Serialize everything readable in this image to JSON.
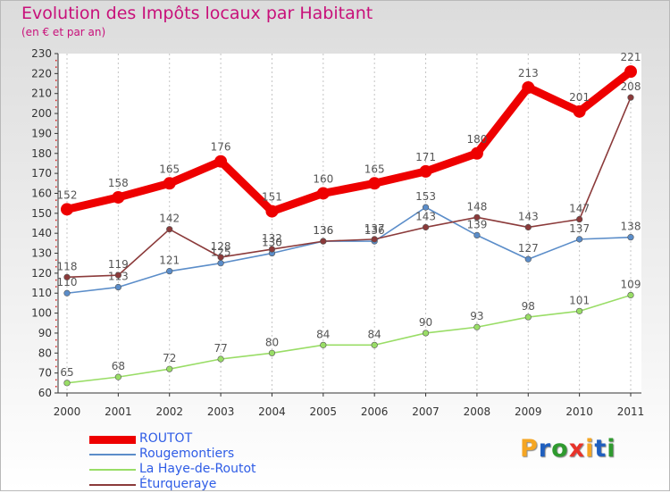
{
  "chart_data": {
    "type": "line",
    "title": "Evolution des Impôts locaux par Habitant",
    "subtitle": "(en € et par an)",
    "xlabel": "",
    "ylabel": "",
    "ylim": [
      60,
      230
    ],
    "ytick_step": 10,
    "x": [
      "2000",
      "2001",
      "2002",
      "2003",
      "2004",
      "2005",
      "2006",
      "2007",
      "2008",
      "2009",
      "2010",
      "2011"
    ],
    "grid": "vertical dotted",
    "legend_position": "bottom-left",
    "series": [
      {
        "name": "ROUTOT",
        "color": "#ee0000",
        "values": [
          152,
          158,
          165,
          176,
          151,
          160,
          165,
          171,
          180,
          213,
          201,
          221
        ]
      },
      {
        "name": "Rougemontiers",
        "color": "#5b8dc9",
        "values": [
          110,
          113,
          121,
          125,
          130,
          136,
          136,
          153,
          139,
          127,
          137,
          138
        ]
      },
      {
        "name": "La Haye-de-Routot",
        "color": "#99dd66",
        "values": [
          65,
          68,
          72,
          77,
          80,
          84,
          84,
          90,
          93,
          98,
          101,
          109
        ]
      },
      {
        "name": "Éturqueraye",
        "color": "#8b3a3a",
        "values": [
          118,
          119,
          142,
          128,
          132,
          136,
          137,
          143,
          148,
          143,
          147,
          208
        ]
      }
    ]
  },
  "logo": {
    "text": "Proxiti",
    "colors": [
      "#f5a623",
      "#1f5fbf",
      "#2f9a2f",
      "#e8332a",
      "#f5a623",
      "#1f5fbf",
      "#2f9a2f"
    ]
  }
}
